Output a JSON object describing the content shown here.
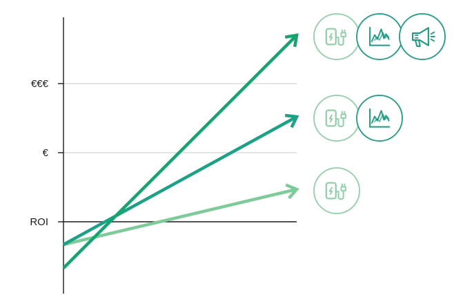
{
  "chart_data": {
    "type": "line",
    "title": "",
    "xlabel": "",
    "ylabel": "",
    "y_ticks": [
      {
        "label": "ROI",
        "value": 1
      },
      {
        "label": "€",
        "value": 2
      },
      {
        "label": "€€€",
        "value": 3
      }
    ],
    "ylim": [
      -0.04,
      3.96
    ],
    "xlim": [
      0,
      1
    ],
    "grid": true,
    "series": [
      {
        "color": "#7dcb98",
        "points": [
          [
            0,
            0.67
          ],
          [
            1,
            1.47
          ]
        ],
        "icons": [
          "ev-charger-icon"
        ]
      },
      {
        "color": "#1aa287",
        "points": [
          [
            0,
            0.67
          ],
          [
            1,
            2.52
          ]
        ],
        "icons": [
          "ev-charger-icon",
          "line-chart-icon"
        ]
      },
      {
        "color": "#14a56f",
        "points": [
          [
            0,
            0.33
          ],
          [
            1,
            3.7
          ]
        ],
        "icons": [
          "ev-charger-icon",
          "line-chart-icon",
          "megaphone-icon"
        ]
      }
    ]
  },
  "colors": {
    "axis": "#1a1a1a",
    "grid": "#c8c8c8",
    "badge_light": "#8fd0a6",
    "badge_dark": "#1b9c83"
  }
}
